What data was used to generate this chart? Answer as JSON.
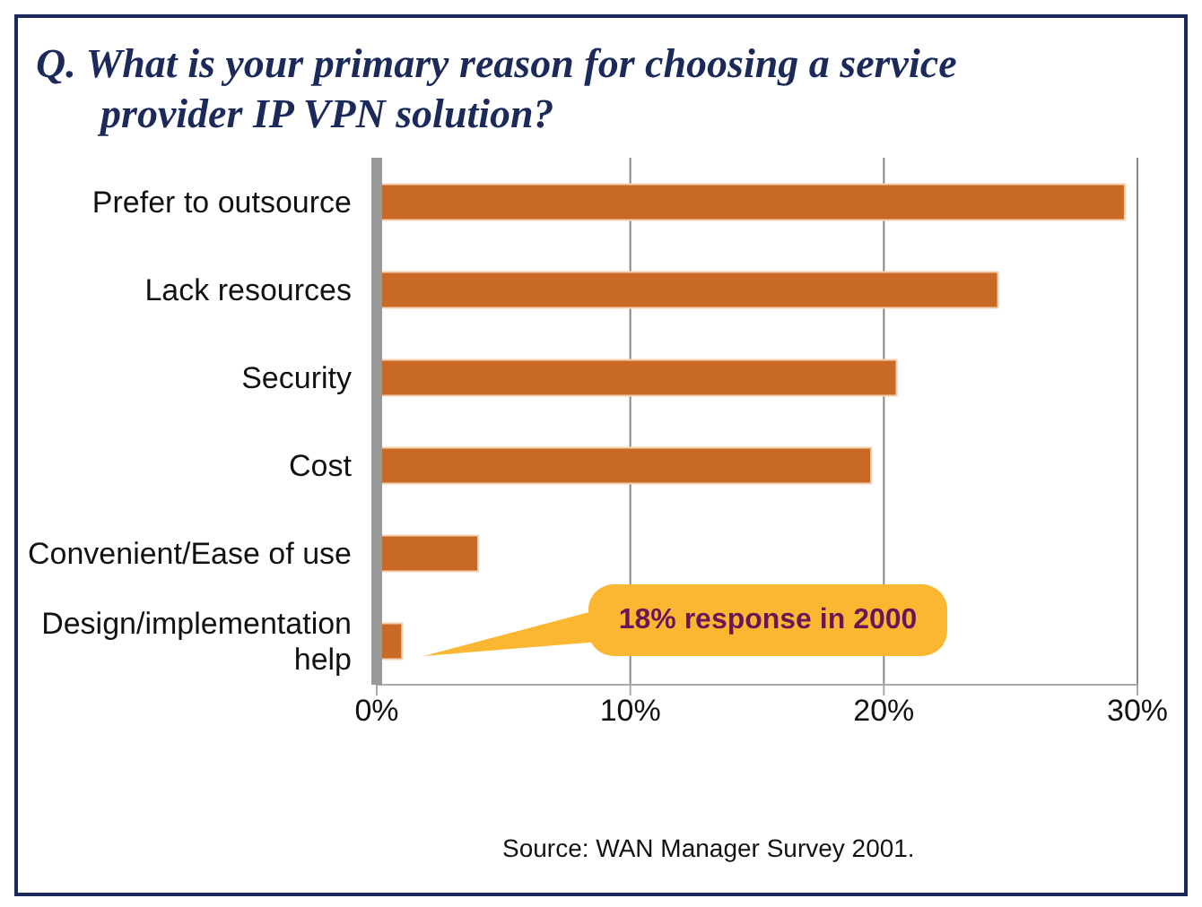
{
  "chart_data": {
    "type": "bar",
    "orientation": "horizontal",
    "title": "Q.  What is your primary reason for choosing a service provider IP VPN solution?",
    "categories": [
      "Prefer to outsource",
      "Lack resources",
      "Security",
      "Cost",
      "Convenient/Ease of use",
      "Design/implementation help"
    ],
    "values": [
      29.5,
      24.5,
      20.5,
      19.5,
      4,
      1
    ],
    "color": "#c86a26",
    "xlim": [
      0,
      30
    ],
    "xticks": [
      {
        "value": 0,
        "label": "0%"
      },
      {
        "value": 10,
        "label": "10%"
      },
      {
        "value": 20,
        "label": "20%"
      },
      {
        "value": 30,
        "label": "30%"
      }
    ],
    "grid": "x",
    "annotations": [
      "18% response in 2000",
      "Source: WAN Manager Survey 2001."
    ]
  }
}
